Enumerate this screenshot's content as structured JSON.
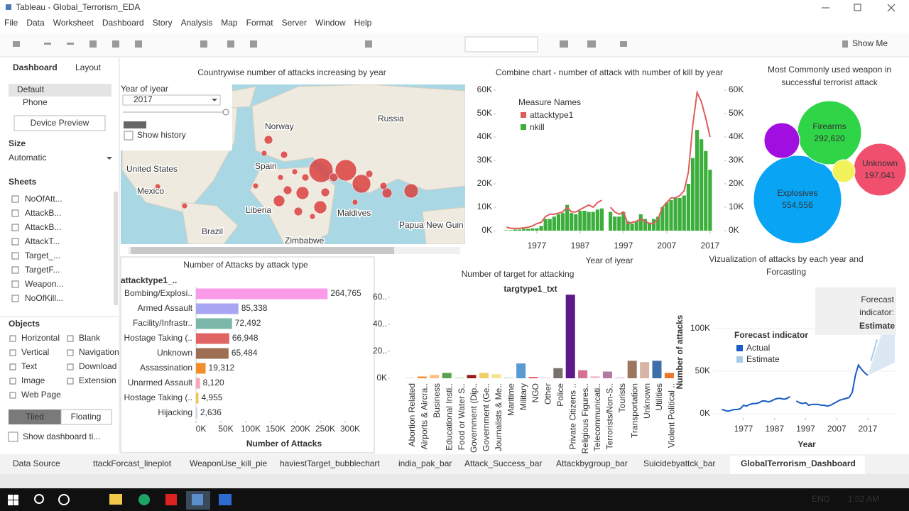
{
  "window": {
    "title": "Tableau - Global_Terrorism_EDA"
  },
  "menu": [
    "File",
    "Data",
    "Worksheet",
    "Dashboard",
    "Story",
    "Analysis",
    "Map",
    "Format",
    "Server",
    "Window",
    "Help"
  ],
  "toolbar": {
    "show_me": "Show Me"
  },
  "sidebar": {
    "tabs": [
      "Dashboard",
      "Layout"
    ],
    "devices": [
      "Default",
      "Phone"
    ],
    "device_preview": "Device Preview",
    "size_title": "Size",
    "size_value": "Automatic",
    "sheets_title": "Sheets",
    "sheets": [
      "NoOfAtt...",
      "AttackB...",
      "AttackB...",
      "AttackT...",
      "Target_...",
      "TargetF...",
      "Weapon...",
      "NoOfKill..."
    ],
    "objects_title": "Objects",
    "objects": [
      "Horizontal",
      "Blank",
      "Vertical",
      "Navigation",
      "Text",
      "Download",
      "Image",
      "Extension",
      "Web Page"
    ],
    "tiled": "Tiled",
    "floating": "Floating",
    "show_title": "Show dashboard ti..."
  },
  "map": {
    "title": "Countrywise number of attacks increasing by year",
    "filter_label": "Year of iyear",
    "filter_value": "2017",
    "show_history": "Show history",
    "places": [
      "United States",
      "Mexico",
      "Norway",
      "Russia",
      "Spain",
      "Liberia",
      "Maldives",
      "Brazil",
      "Zimbabwe",
      "Papua New Guin"
    ]
  },
  "chart_data": [
    {
      "type": "combo",
      "title": "Combine chart - number of attack with number of kill by year",
      "legend_title": "Measure Names",
      "x": [
        1970,
        1971,
        1972,
        1973,
        1974,
        1975,
        1976,
        1977,
        1978,
        1979,
        1980,
        1981,
        1982,
        1983,
        1984,
        1985,
        1986,
        1987,
        1988,
        1989,
        1990,
        1991,
        1992,
        1993,
        1994,
        1995,
        1996,
        1997,
        1998,
        1999,
        2000,
        2001,
        2002,
        2003,
        2004,
        2005,
        2006,
        2007,
        2008,
        2009,
        2010,
        2011,
        2012,
        2013,
        2014,
        2015,
        2016,
        2017
      ],
      "xlim": [
        1967.5,
        2020.3
      ],
      "xticks": [
        1977,
        1987,
        1997,
        2007,
        2017
      ],
      "xlabel": "Year of iyear",
      "ylim": [
        0,
        60000
      ],
      "yticks": [
        {
          "value": 0,
          "label": "0K"
        },
        {
          "value": 10000,
          "label": "10K"
        },
        {
          "value": 20000,
          "label": "20K"
        },
        {
          "value": 30000,
          "label": "30K"
        },
        {
          "value": 40000,
          "label": "40K"
        },
        {
          "value": 50000,
          "label": "50K"
        },
        {
          "value": 60000,
          "label": "60K"
        }
      ],
      "y2lim": [
        0,
        60000
      ],
      "y2ticks": [
        {
          "value": 0,
          "label": "0K"
        },
        {
          "value": 10000,
          "label": "10K"
        },
        {
          "value": 20000,
          "label": "20K"
        },
        {
          "value": 30000,
          "label": "30K"
        },
        {
          "value": 40000,
          "label": "40K"
        },
        {
          "value": 50000,
          "label": "50K"
        },
        {
          "value": 60000,
          "label": "60K"
        }
      ],
      "series": [
        {
          "name": "attacktype1",
          "color": "#e05c5c",
          "type": "line",
          "values": [
            1500,
            1000,
            1000,
            1000,
            1200,
            1500,
            2000,
            3000,
            3500,
            6000,
            7000,
            7000,
            7500,
            8000,
            10000,
            8000,
            8000,
            9000,
            10000,
            11000,
            10000,
            12000,
            13000,
            null,
            10000,
            8000,
            7000,
            8000,
            3000,
            3500,
            4000,
            5000,
            4000,
            3000,
            3000,
            5000,
            10000,
            12000,
            14000,
            14000,
            15000,
            17000,
            25000,
            45000,
            59000,
            55000,
            48000,
            40000
          ]
        },
        {
          "name": "nkill",
          "color": "#3cae3c",
          "type": "bar",
          "axis": "y2",
          "values": [
            200,
            200,
            500,
            500,
            800,
            800,
            1000,
            1000,
            2000,
            5000,
            5000,
            6000,
            7000,
            7500,
            11000,
            7500,
            7000,
            8500,
            8500,
            8000,
            8000,
            9000,
            9500,
            null,
            8000,
            6000,
            6000,
            8000,
            4000,
            3000,
            4000,
            7000,
            5000,
            3500,
            5000,
            6000,
            10000,
            12000,
            13000,
            14000,
            14000,
            15000,
            20000,
            31000,
            43000,
            39000,
            34000,
            26000
          ]
        }
      ]
    },
    {
      "type": "bubble",
      "title_lines": [
        "Most Commonly used weapon in",
        "successful terrorist attack"
      ],
      "categories": [
        "Explosives",
        "Firearms",
        "Unknown",
        null,
        null
      ],
      "values": [
        554556,
        292620,
        197041,
        90000,
        37000
      ],
      "value_labels": [
        "554,556",
        "292,620",
        "197,041",
        null,
        null
      ],
      "colors": [
        "#0aa4f5",
        "#2fd447",
        "#f0506e",
        "#a10ee0",
        "#f2f25a"
      ]
    },
    {
      "type": "hbar",
      "title": "Number of Attacks by attack type",
      "header": "attacktype1_..",
      "categories": [
        "Bombing/Explosi..",
        "Armed Assault",
        "Facility/Infrastr..",
        "Hostage Taking (..",
        "Unknown",
        "Assassination",
        "Unarmed Assault",
        "Hostage Taking (..",
        "Hijacking"
      ],
      "values": [
        264765,
        85338,
        72492,
        66948,
        65484,
        19312,
        8120,
        4955,
        2636
      ],
      "value_labels": [
        "264,765",
        "85,338",
        "72,492",
        "66,948",
        "65,484",
        "19,312",
        "8,120",
        "4,955",
        "2,636"
      ],
      "colors": [
        "#f99be8",
        "#a8a6f2",
        "#7bb8aa",
        "#e06464",
        "#9e6e52",
        "#f28e2b",
        "#f7a8b4",
        "#ecc94b",
        "#c9d8ea"
      ],
      "xlim": [
        0,
        300000
      ],
      "xticks": [
        {
          "value": 0,
          "label": "0K"
        },
        {
          "value": 50000,
          "label": "50K"
        },
        {
          "value": 100000,
          "label": "100K"
        },
        {
          "value": 150000,
          "label": "150K"
        },
        {
          "value": 200000,
          "label": "200K"
        },
        {
          "value": 250000,
          "label": "250K"
        },
        {
          "value": 300000,
          "label": "300K"
        }
      ],
      "xlabel": "Number of Attacks"
    },
    {
      "type": "bar",
      "title": "Number of target for attacking",
      "header": "targtype1_txt",
      "categories": [
        "Abortion Related",
        "Airports & Aircra..",
        "Business",
        "Educational Insti..",
        "Food or Water S..",
        "Government (Dip..",
        "Government (Ge..",
        "Journalists & Me..",
        "Maritime",
        "Military",
        "NGO",
        "Other",
        "Police",
        "Private Citizens ..",
        "Religious Figures..",
        "Telecommunicati..",
        "Terrorists/Non-S..",
        "Tourists",
        "Transportation",
        "Unknown",
        "Utilities",
        "Violent Political .."
      ],
      "values": [
        300,
        1300,
        2500,
        4000,
        400,
        2500,
        4000,
        3000,
        400,
        11000,
        1000,
        300,
        7500,
        62000,
        6000,
        1500,
        5000,
        500,
        13000,
        12000,
        13000,
        4000
      ],
      "colors": [
        "#aec7e8",
        "#f28e2b",
        "#ffbe7d",
        "#59a14f",
        "#8cd17d",
        "#9b1c1c",
        "#f1ce63",
        "#f6e38a",
        "#86bcb6",
        "#5b9bd5",
        "#e15759",
        "#ff9d9a",
        "#79706e",
        "#5b1a87",
        "#d37295",
        "#fabfd2",
        "#b07aa1",
        "#d4a6c8",
        "#9d7660",
        "#d7b5a6",
        "#3f6fa8",
        "#e8762c"
      ],
      "ylim": [
        0,
        60000
      ],
      "yticks": [
        {
          "value": 0,
          "label": "0K"
        },
        {
          "value": 20000,
          "label": "20.."
        },
        {
          "value": 40000,
          "label": "40.."
        },
        {
          "value": 60000,
          "label": "60.."
        }
      ]
    },
    {
      "type": "forecast",
      "title_lines": [
        "Vizualization of attacks by each year and",
        "Forcasting"
      ],
      "ylabel": "Number of attacks",
      "xlabel": "Year",
      "legend_title": "Forecast indicator",
      "tooltip_lines": [
        "Forecast",
        "indicator:"
      ],
      "tooltip_value": "Estimate",
      "xlim": [
        1967.4,
        2025.7
      ],
      "xticks": [
        1977,
        1987,
        1997,
        2007,
        2017
      ],
      "ylim": [
        0,
        148000
      ],
      "yticks": [
        {
          "value": 0,
          "label": "0K"
        },
        {
          "value": 50000,
          "label": "50K"
        },
        {
          "value": 100000,
          "label": "100K"
        }
      ],
      "series": [
        {
          "name": "Actual",
          "color": "#1a5cc8",
          "x": [
            1970,
            1971,
            1972,
            1973,
            1974,
            1975,
            1976,
            1977,
            1978,
            1979,
            1980,
            1981,
            1982,
            1983,
            1984,
            1985,
            1986,
            1987,
            1988,
            1989,
            1990,
            1991,
            1992,
            1993,
            1994,
            1995,
            1996,
            1997,
            1998,
            1999,
            2000,
            2001,
            2002,
            2003,
            2004,
            2005,
            2006,
            2007,
            2008,
            2009,
            2010,
            2011,
            2012,
            2013,
            2014,
            2015,
            2016,
            2017
          ],
          "values": [
            5000,
            4000,
            3000,
            4000,
            5000,
            5000,
            6000,
            10000,
            9000,
            11000,
            12000,
            12000,
            13000,
            15000,
            15000,
            14000,
            15000,
            17000,
            18000,
            18000,
            17000,
            18000,
            20000,
            null,
            15000,
            13000,
            12000,
            13000,
            10000,
            11000,
            11000,
            11000,
            10000,
            10000,
            9000,
            10000,
            12000,
            14000,
            16000,
            17000,
            18000,
            19000,
            25000,
            45000,
            57000,
            52000,
            48000,
            45000
          ]
        },
        {
          "name": "Estimate",
          "color": "#a6cbe8",
          "x": [
            2018,
            2019,
            2020
          ],
          "values": [
            62000,
            74000,
            87000
          ]
        }
      ]
    }
  ],
  "tabs": [
    "Data Source",
    "ttackForcast_lineplot",
    "WeaponUse_kill_pie",
    "haviestTarget_bubblechart",
    "india_pak_bar",
    "Attack_Success_bar",
    "Attackbygroup_bar",
    "Suicidebyattck_bar",
    "GlobalTerrorism_Dashboard"
  ],
  "taskbar": {
    "language": "ENG",
    "time": "1:02 AM"
  }
}
